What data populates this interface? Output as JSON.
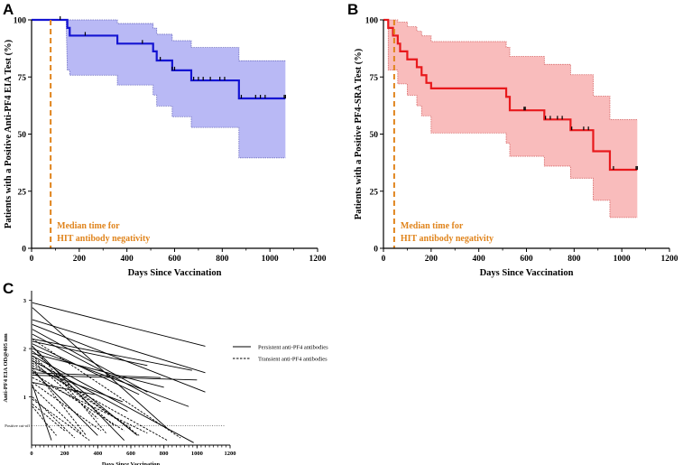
{
  "chart_data": [
    {
      "panel": "A",
      "type": "line",
      "subtype": "kaplan-meier",
      "ylabel": "Patients with a Positive Anti-PF4 EIA Test (%)",
      "xlabel": "Days Since Vaccination",
      "xlim": [
        0,
        1200
      ],
      "ylim": [
        0,
        100
      ],
      "xticks": [
        0,
        200,
        400,
        600,
        800,
        1000,
        1200
      ],
      "yticks": [
        0,
        25,
        50,
        75,
        100
      ],
      "line_color": "#1414d2",
      "band_color": "#b9b9f5",
      "band_edge_color": "#6b6bbf",
      "median_color": "#e0841c",
      "median_x": 80,
      "median_label_line1": "Median time for",
      "median_label_line2": "HIT antibody negativity",
      "survival": [
        [
          0,
          100
        ],
        [
          150,
          100
        ],
        [
          150,
          96.5
        ],
        [
          160,
          96.5
        ],
        [
          160,
          93.1
        ],
        [
          360,
          93.1
        ],
        [
          360,
          89.6
        ],
        [
          510,
          89.6
        ],
        [
          510,
          86.2
        ],
        [
          525,
          86.2
        ],
        [
          525,
          82.2
        ],
        [
          590,
          82.2
        ],
        [
          590,
          77.9
        ],
        [
          670,
          77.9
        ],
        [
          670,
          73.5
        ],
        [
          870,
          73.5
        ],
        [
          870,
          65.6
        ],
        [
          1065,
          65.6
        ]
      ],
      "ci_upper": [
        [
          0,
          100
        ],
        [
          150,
          100
        ],
        [
          160,
          100
        ],
        [
          360,
          100
        ],
        [
          360,
          98.4
        ],
        [
          510,
          98.4
        ],
        [
          510,
          96.4
        ],
        [
          525,
          96.4
        ],
        [
          525,
          93.7
        ],
        [
          590,
          93.7
        ],
        [
          590,
          90.9
        ],
        [
          670,
          90.9
        ],
        [
          670,
          87.9
        ],
        [
          870,
          87.9
        ],
        [
          870,
          82.1
        ],
        [
          1065,
          82.1
        ]
      ],
      "ci_lower": [
        [
          0,
          100
        ],
        [
          145,
          100
        ],
        [
          150,
          78
        ],
        [
          160,
          78
        ],
        [
          160,
          75.8
        ],
        [
          360,
          75.8
        ],
        [
          360,
          71.5
        ],
        [
          510,
          71.5
        ],
        [
          510,
          67.1
        ],
        [
          525,
          67.1
        ],
        [
          525,
          62.3
        ],
        [
          590,
          62.3
        ],
        [
          590,
          57.6
        ],
        [
          670,
          57.6
        ],
        [
          670,
          52.9
        ],
        [
          870,
          52.9
        ],
        [
          870,
          39.6
        ],
        [
          1065,
          39.6
        ]
      ],
      "censor_x": [
        120,
        225,
        465,
        540,
        590,
        600,
        680,
        700,
        720,
        750,
        790,
        810,
        880,
        940,
        960,
        980,
        1060,
        1065
      ]
    },
    {
      "panel": "B",
      "type": "line",
      "subtype": "kaplan-meier",
      "ylabel": "Patients with a Positive PF4-SRA Test (%)",
      "xlabel": "Days Since Vaccination",
      "xlim": [
        0,
        1200
      ],
      "ylim": [
        0,
        100
      ],
      "xticks": [
        0,
        200,
        400,
        600,
        800,
        1000,
        1200
      ],
      "yticks": [
        0,
        25,
        50,
        75,
        100
      ],
      "line_color": "#e8191c",
      "band_color": "#f9bcbc",
      "band_edge_color": "#d66565",
      "median_color": "#e0841c",
      "median_x": 45,
      "median_label_line1": "Median time for",
      "median_label_line2": "HIT antibody negativity",
      "survival": [
        [
          0,
          100
        ],
        [
          20,
          100
        ],
        [
          20,
          96.5
        ],
        [
          40,
          96.5
        ],
        [
          40,
          93.1
        ],
        [
          60,
          93.1
        ],
        [
          60,
          89.6
        ],
        [
          70,
          89.6
        ],
        [
          70,
          86.2
        ],
        [
          100,
          86.2
        ],
        [
          100,
          82.7
        ],
        [
          140,
          82.7
        ],
        [
          140,
          79.3
        ],
        [
          160,
          79.3
        ],
        [
          160,
          75.8
        ],
        [
          180,
          75.8
        ],
        [
          180,
          72.4
        ],
        [
          200,
          72.4
        ],
        [
          200,
          70
        ],
        [
          515,
          70
        ],
        [
          515,
          66.3
        ],
        [
          530,
          66.3
        ],
        [
          530,
          60.4
        ],
        [
          675,
          60.4
        ],
        [
          675,
          56.4
        ],
        [
          785,
          56.4
        ],
        [
          785,
          51.7
        ],
        [
          880,
          51.7
        ],
        [
          880,
          42.5
        ],
        [
          950,
          42.5
        ],
        [
          950,
          34.4
        ],
        [
          1065,
          34.4
        ]
      ],
      "ci_upper": [
        [
          0,
          100
        ],
        [
          40,
          100
        ],
        [
          60,
          100
        ],
        [
          60,
          99
        ],
        [
          100,
          99
        ],
        [
          100,
          97
        ],
        [
          140,
          97
        ],
        [
          140,
          95
        ],
        [
          160,
          95
        ],
        [
          160,
          93
        ],
        [
          200,
          93
        ],
        [
          200,
          90.5
        ],
        [
          515,
          90.5
        ],
        [
          515,
          88
        ],
        [
          530,
          88
        ],
        [
          530,
          84
        ],
        [
          675,
          84
        ],
        [
          675,
          80.5
        ],
        [
          785,
          80.5
        ],
        [
          785,
          76
        ],
        [
          880,
          76
        ],
        [
          880,
          66.6
        ],
        [
          950,
          66.6
        ],
        [
          950,
          56.3
        ],
        [
          1065,
          56.3
        ]
      ],
      "ci_lower": [
        [
          0,
          100
        ],
        [
          20,
          100
        ],
        [
          20,
          78
        ],
        [
          60,
          78
        ],
        [
          60,
          72
        ],
        [
          100,
          72
        ],
        [
          100,
          67
        ],
        [
          140,
          67
        ],
        [
          140,
          62.4
        ],
        [
          160,
          62.4
        ],
        [
          160,
          58
        ],
        [
          200,
          58
        ],
        [
          200,
          50.5
        ],
        [
          515,
          50.5
        ],
        [
          515,
          46
        ],
        [
          530,
          46
        ],
        [
          530,
          40.3
        ],
        [
          675,
          40.3
        ],
        [
          675,
          36
        ],
        [
          785,
          36
        ],
        [
          785,
          30.7
        ],
        [
          880,
          30.7
        ],
        [
          880,
          21
        ],
        [
          950,
          21
        ],
        [
          950,
          13.5
        ],
        [
          1065,
          13.5
        ]
      ],
      "censor_x": [
        590,
        595,
        680,
        700,
        730,
        750,
        790,
        840,
        860,
        965,
        1060,
        1065
      ]
    },
    {
      "panel": "C",
      "type": "line",
      "subtype": "spaghetti",
      "ylabel": "Anti-PF4 EIA OD@405 nm",
      "xlabel": "Days Since Vaccination",
      "xlim": [
        0,
        1200
      ],
      "ylim": [
        0,
        3.2
      ],
      "xticks": [
        0,
        200,
        400,
        600,
        800,
        1000,
        1200
      ],
      "yticks": [
        1,
        2,
        3
      ],
      "cutoff_value": 0.4,
      "cutoff_label": "Positive cut-off",
      "legend": [
        {
          "label": "Persistent anti-PF4 antibodies",
          "style": "solid"
        },
        {
          "label": "Transient anti-PF4 antibodies",
          "style": "dashed"
        }
      ],
      "series": [
        {
          "style": "solid",
          "points": [
            [
              5,
              2.95
            ],
            [
              1050,
              2.05
            ]
          ]
        },
        {
          "style": "solid",
          "points": [
            [
              5,
              2.6
            ],
            [
              1050,
              1.5
            ]
          ]
        },
        {
          "style": "solid",
          "points": [
            [
              5,
              2.5
            ],
            [
              1050,
              1.1
            ]
          ]
        },
        {
          "style": "solid",
          "points": [
            [
              5,
              2.2
            ],
            [
              970,
              1.55
            ]
          ]
        },
        {
          "style": "solid",
          "points": [
            [
              5,
              1.45
            ],
            [
              1000,
              1.35
            ]
          ]
        },
        {
          "style": "solid",
          "points": [
            [
              5,
              1.5
            ],
            [
              780,
              1.4
            ]
          ]
        },
        {
          "style": "solid",
          "points": [
            [
              5,
              2.15
            ],
            [
              700,
              1.65
            ]
          ]
        },
        {
          "style": "solid",
          "points": [
            [
              5,
              1.9
            ],
            [
              800,
              1.2
            ]
          ]
        },
        {
          "style": "solid",
          "points": [
            [
              5,
              2.0
            ],
            [
              950,
              0.8
            ]
          ]
        },
        {
          "style": "solid",
          "points": [
            [
              5,
              2.3
            ],
            [
              780,
              0.9
            ]
          ]
        },
        {
          "style": "solid",
          "points": [
            [
              5,
              2.1
            ],
            [
              650,
              1.05
            ]
          ]
        },
        {
          "style": "solid",
          "points": [
            [
              5,
              1.85
            ],
            [
              980,
              0.05
            ]
          ]
        },
        {
          "style": "solid",
          "points": [
            [
              5,
              2.85
            ],
            [
              820,
              0.35
            ]
          ]
        },
        {
          "style": "solid",
          "points": [
            [
              5,
              1.75
            ],
            [
              580,
              0.7
            ]
          ]
        },
        {
          "style": "solid",
          "points": [
            [
              5,
              1.6
            ],
            [
              550,
              0.9
            ]
          ]
        },
        {
          "style": "solid",
          "points": [
            [
              5,
              1.95
            ],
            [
              640,
              0.2
            ]
          ]
        },
        {
          "style": "solid",
          "points": [
            [
              5,
              2.4
            ],
            [
              700,
              1.1
            ]
          ]
        },
        {
          "style": "solid",
          "points": [
            [
              5,
              1.3
            ],
            [
              380,
              1.05
            ]
          ]
        },
        {
          "style": "solid",
          "points": [
            [
              5,
              1.25
            ],
            [
              120,
              0.1
            ]
          ]
        },
        {
          "style": "solid",
          "points": [
            [
              5,
              1.55
            ],
            [
              400,
              0.2
            ]
          ]
        },
        {
          "style": "solid",
          "points": [
            [
              5,
              2.05
            ],
            [
              560,
              0.1
            ]
          ]
        },
        {
          "style": "dashed",
          "points": [
            [
              5,
              2.2
            ],
            [
              900,
              0.15
            ]
          ]
        },
        {
          "style": "dashed",
          "points": [
            [
              5,
              1.65
            ],
            [
              820,
              0.1
            ]
          ]
        },
        {
          "style": "dashed",
          "points": [
            [
              5,
              1.4
            ],
            [
              700,
              0.25
            ]
          ]
        },
        {
          "style": "dashed",
          "points": [
            [
              5,
              1.8
            ],
            [
              650,
              0.2
            ]
          ]
        },
        {
          "style": "dashed",
          "points": [
            [
              5,
              1.7
            ],
            [
              600,
              0.35
            ]
          ]
        },
        {
          "style": "dashed",
          "points": [
            [
              5,
              1.5
            ],
            [
              560,
              0.3
            ]
          ]
        },
        {
          "style": "dashed",
          "points": [
            [
              5,
              1.85
            ],
            [
              500,
              0.4
            ]
          ]
        },
        {
          "style": "dashed",
          "points": [
            [
              5,
              2.05
            ],
            [
              450,
              0.25
            ]
          ]
        },
        {
          "style": "dashed",
          "points": [
            [
              5,
              1.3
            ],
            [
              420,
              0.3
            ]
          ]
        },
        {
          "style": "dashed",
          "points": [
            [
              5,
              0.95
            ],
            [
              350,
              0.1
            ]
          ]
        },
        {
          "style": "dashed",
          "points": [
            [
              5,
              1.6
            ],
            [
              330,
              0.2
            ]
          ]
        },
        {
          "style": "dashed",
          "points": [
            [
              5,
              1.2
            ],
            [
              300,
              0.25
            ]
          ]
        },
        {
          "style": "dashed",
          "points": [
            [
              5,
              1.0
            ],
            [
              260,
              0.15
            ]
          ]
        },
        {
          "style": "dashed",
          "points": [
            [
              5,
              0.85
            ],
            [
              200,
              0.3
            ]
          ]
        },
        {
          "style": "dashed",
          "points": [
            [
              5,
              1.75
            ],
            [
              400,
              0.55
            ]
          ]
        },
        {
          "style": "dashed",
          "points": [
            [
              5,
              0.8
            ],
            [
              150,
              0.2
            ]
          ]
        }
      ]
    }
  ]
}
